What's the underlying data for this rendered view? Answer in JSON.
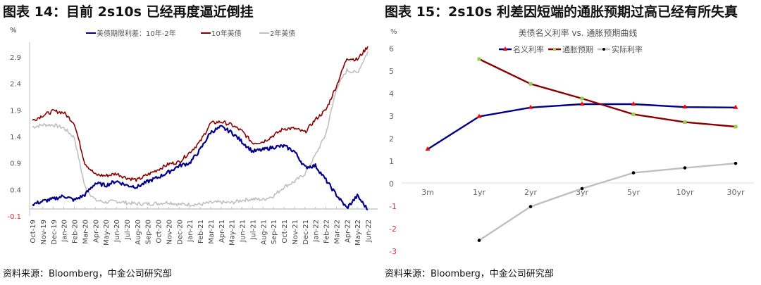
{
  "left": {
    "title": "图表 14：目前 2s10s 已经再度逼近倒挂",
    "source": "资料来源：Bloomberg，中金公司研究部",
    "unit": "%",
    "legend": [
      "美债期限利差：10年-2年",
      "10年美债",
      "2年美债"
    ]
  },
  "right": {
    "title": "图表 15：2s10s 利差因短端的通胀预期过高已经有所失真",
    "source": "资料来源：Bloomberg，中金公司研究部",
    "unit": "%",
    "chart_title": "美债名义利率 vs. 通胀预期曲线",
    "legend": [
      "名义利率",
      "通胀预期",
      "实际利率"
    ]
  },
  "chart_data": [
    {
      "type": "line",
      "title": "图表 14：目前 2s10s 已经再度逼近倒挂",
      "xlabel": "",
      "ylabel": "%",
      "ylim": [
        -0.1,
        3.2
      ],
      "yticks": [
        -0.1,
        0.4,
        0.9,
        1.4,
        1.9,
        2.4,
        2.9
      ],
      "legend_position": "top",
      "grid": false,
      "categories": [
        "Oct-19",
        "Nov-19",
        "Dec-19",
        "Jan-20",
        "Feb-20",
        "Mar-20",
        "Apr-20",
        "May-20",
        "Jun-20",
        "Jul-20",
        "Aug-20",
        "Sep-20",
        "Oct-20",
        "Nov-20",
        "Dec-20",
        "Jan-21",
        "Feb-21",
        "Mar-21",
        "Apr-21",
        "May-21",
        "Jun-21",
        "Jul-21",
        "Aug-21",
        "Sep-21",
        "Oct-21",
        "Nov-21",
        "Dec-21",
        "Jan-22",
        "Feb-22",
        "Mar-22",
        "Apr-22",
        "May-22",
        "Jun-22"
      ],
      "series": [
        {
          "name": "美债期限利差：10年-2年",
          "color": "#00008B",
          "values": [
            0.12,
            0.18,
            0.22,
            0.28,
            0.2,
            0.3,
            0.52,
            0.48,
            0.56,
            0.48,
            0.45,
            0.55,
            0.63,
            0.73,
            0.85,
            0.9,
            1.15,
            1.48,
            1.58,
            1.48,
            1.3,
            1.12,
            1.15,
            1.2,
            1.22,
            1.12,
            0.82,
            0.85,
            0.58,
            0.3,
            0.05,
            0.28,
            0.02
          ]
        },
        {
          "name": "10年美债",
          "color": "#8B0000",
          "values": [
            1.7,
            1.8,
            1.88,
            1.85,
            1.65,
            0.9,
            0.68,
            0.66,
            0.7,
            0.62,
            0.58,
            0.68,
            0.78,
            0.88,
            0.92,
            1.1,
            1.3,
            1.65,
            1.68,
            1.62,
            1.5,
            1.28,
            1.3,
            1.42,
            1.55,
            1.55,
            1.48,
            1.72,
            1.9,
            2.35,
            2.88,
            2.85,
            3.1
          ]
        },
        {
          "name": "2年美债",
          "color": "#C0C0C0",
          "values": [
            1.58,
            1.62,
            1.62,
            1.56,
            1.38,
            0.45,
            0.2,
            0.16,
            0.18,
            0.15,
            0.13,
            0.13,
            0.14,
            0.16,
            0.12,
            0.12,
            0.12,
            0.15,
            0.16,
            0.15,
            0.2,
            0.22,
            0.21,
            0.28,
            0.45,
            0.55,
            0.7,
            1.05,
            1.45,
            2.3,
            2.65,
            2.6,
            3.0
          ]
        }
      ]
    },
    {
      "type": "line",
      "title": "美债名义利率 vs. 通胀预期曲线",
      "xlabel": "",
      "ylabel": "%",
      "ylim": [
        -3,
        6
      ],
      "yticks": [
        -3,
        -2,
        -1,
        0,
        1,
        2,
        3,
        4,
        5,
        6
      ],
      "legend_position": "top",
      "grid": false,
      "categories": [
        "3m",
        "1yr",
        "2yr",
        "3yr",
        "5yr",
        "10yr",
        "30yr"
      ],
      "series": [
        {
          "name": "名义利率",
          "color": "#00008B",
          "marker": "triangle",
          "marker_color": "#FF0000",
          "values": [
            1.5,
            2.95,
            3.35,
            3.5,
            3.5,
            3.37,
            3.35
          ]
        },
        {
          "name": "通胀预期",
          "color": "#8B0000",
          "marker": "square",
          "marker_color": "#92D050",
          "values": [
            null,
            5.5,
            4.4,
            3.75,
            3.05,
            2.7,
            2.5
          ]
        },
        {
          "name": "实际利率",
          "color": "#BFBFBF",
          "marker": "circle",
          "marker_color": "#000000",
          "values": [
            null,
            -2.55,
            -1.05,
            -0.25,
            0.45,
            0.67,
            0.87
          ]
        }
      ]
    }
  ]
}
